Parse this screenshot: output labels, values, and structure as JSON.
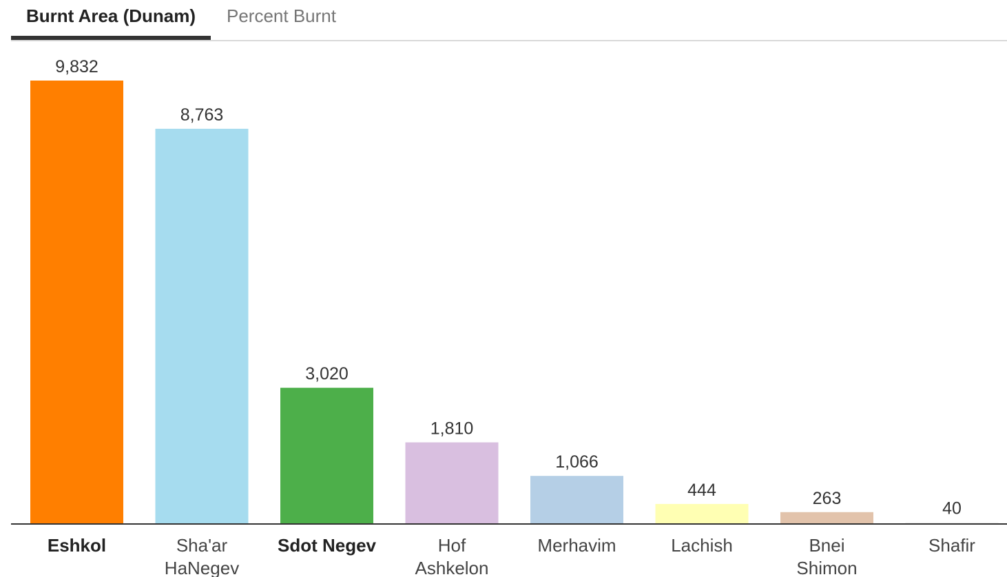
{
  "tabs": {
    "active_label": "Burnt Area (Dunam)",
    "inactive_label": "Percent Burnt"
  },
  "chart_data": {
    "type": "bar",
    "title": "",
    "xlabel": "",
    "ylabel": "",
    "categories": [
      [
        "Eshkol"
      ],
      [
        "Sha'ar",
        "HaNegev"
      ],
      [
        "Sdot Negev"
      ],
      [
        "Hof",
        "Ashkelon"
      ],
      [
        "Merhavim"
      ],
      [
        "Lachish"
      ],
      [
        "Bnei",
        "Shimon"
      ],
      [
        "Shafir"
      ]
    ],
    "values": [
      9832,
      8763,
      3020,
      1810,
      1066,
      444,
      263,
      40
    ],
    "value_labels": [
      "9,832",
      "8,763",
      "3,020",
      "1,810",
      "1,066",
      "444",
      "263",
      "40"
    ],
    "colors": [
      "#ff7f00",
      "#a6dcef",
      "#4daf4a",
      "#d9bfe0",
      "#b5cfe6",
      "#ffffb3",
      "#e2c3ab",
      "#f5f5f5"
    ],
    "bold_categories": [
      true,
      false,
      true,
      false,
      false,
      false,
      false,
      false
    ],
    "ylim": [
      0,
      9832
    ],
    "grid": false,
    "legend": "none"
  }
}
